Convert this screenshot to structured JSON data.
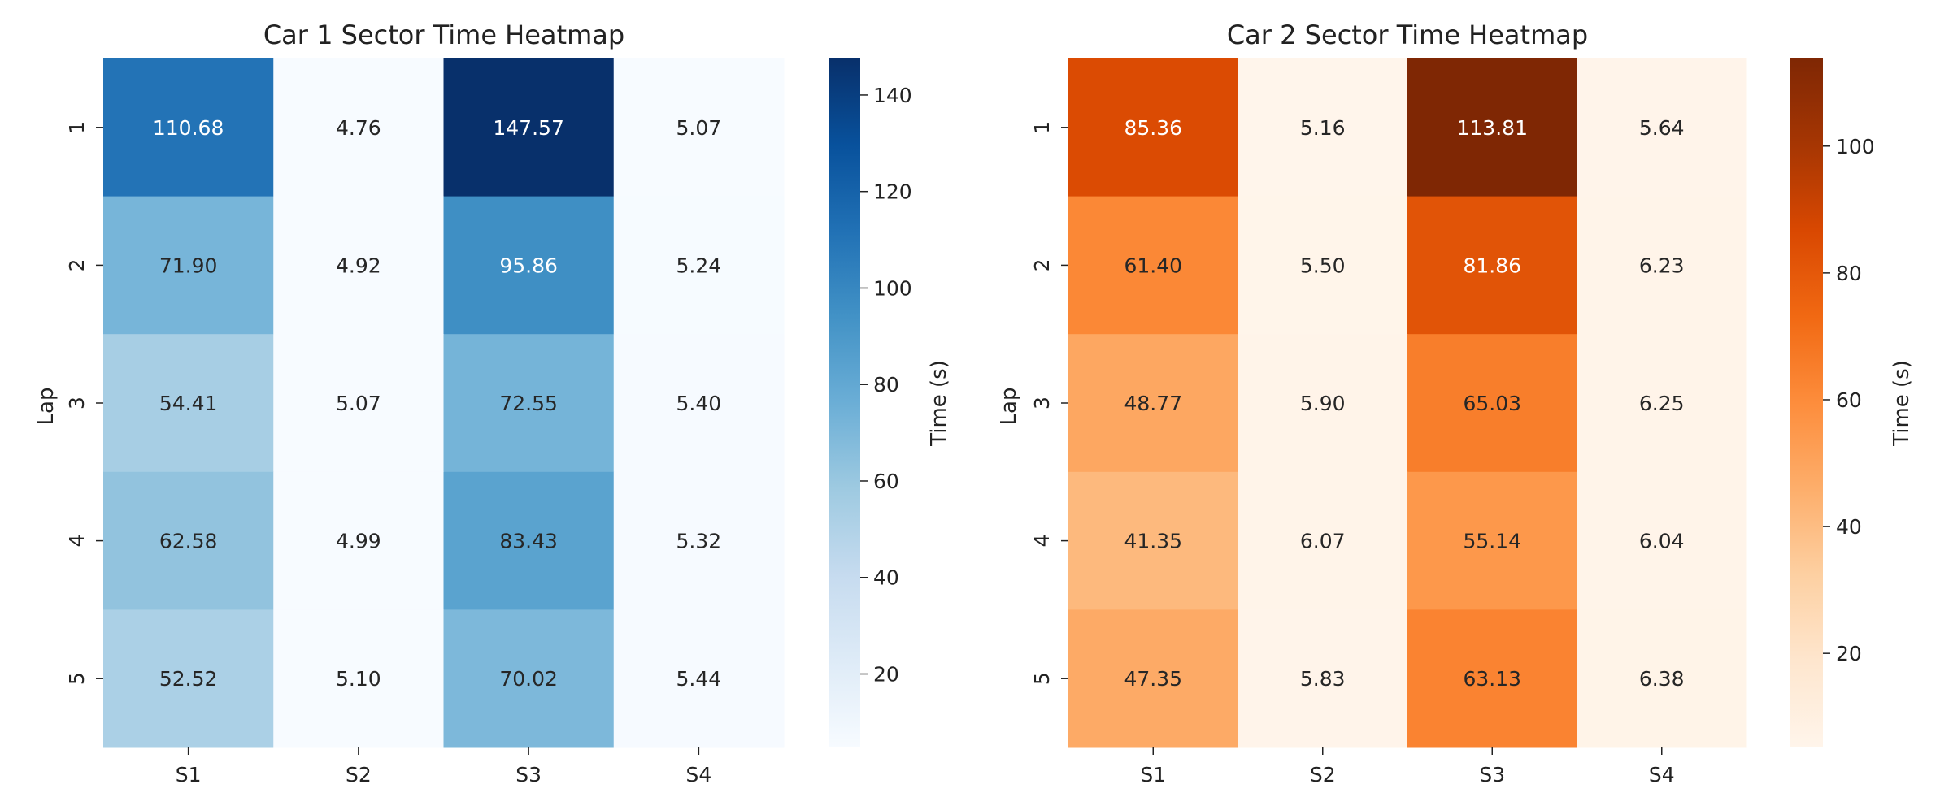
{
  "chart_data": [
    {
      "type": "heatmap",
      "title": "Car 1 Sector Time Heatmap",
      "xlabel": "",
      "ylabel": "Lap",
      "x_categories": [
        "S1",
        "S2",
        "S3",
        "S4"
      ],
      "y_categories": [
        "1",
        "2",
        "3",
        "4",
        "5"
      ],
      "values": [
        [
          110.68,
          4.76,
          147.57,
          5.07
        ],
        [
          71.9,
          4.92,
          95.86,
          5.24
        ],
        [
          54.41,
          5.07,
          72.55,
          5.4
        ],
        [
          62.58,
          4.99,
          83.43,
          5.32
        ],
        [
          52.52,
          5.1,
          70.02,
          5.44
        ]
      ],
      "colormap": "Blues",
      "vmin": 4.76,
      "vmax": 147.57,
      "colorbar": {
        "label": "Time (s)",
        "ticks": [
          20,
          40,
          60,
          80,
          100,
          120,
          140
        ]
      },
      "colors": {
        "low": "#f7fbff",
        "high": "#08306b"
      }
    },
    {
      "type": "heatmap",
      "title": "Car 2 Sector Time Heatmap",
      "xlabel": "",
      "ylabel": "Lap",
      "x_categories": [
        "S1",
        "S2",
        "S3",
        "S4"
      ],
      "y_categories": [
        "1",
        "2",
        "3",
        "4",
        "5"
      ],
      "values": [
        [
          85.36,
          5.16,
          113.81,
          5.64
        ],
        [
          61.4,
          5.5,
          81.86,
          6.23
        ],
        [
          48.77,
          5.9,
          65.03,
          6.25
        ],
        [
          41.35,
          6.07,
          55.14,
          6.04
        ],
        [
          47.35,
          5.83,
          63.13,
          6.38
        ]
      ],
      "colormap": "Oranges",
      "vmin": 5.16,
      "vmax": 113.81,
      "colorbar": {
        "label": "Time (s)",
        "ticks": [
          20,
          40,
          60,
          80,
          100
        ]
      },
      "colors": {
        "low": "#fff5eb",
        "high": "#7f2704"
      }
    }
  ]
}
